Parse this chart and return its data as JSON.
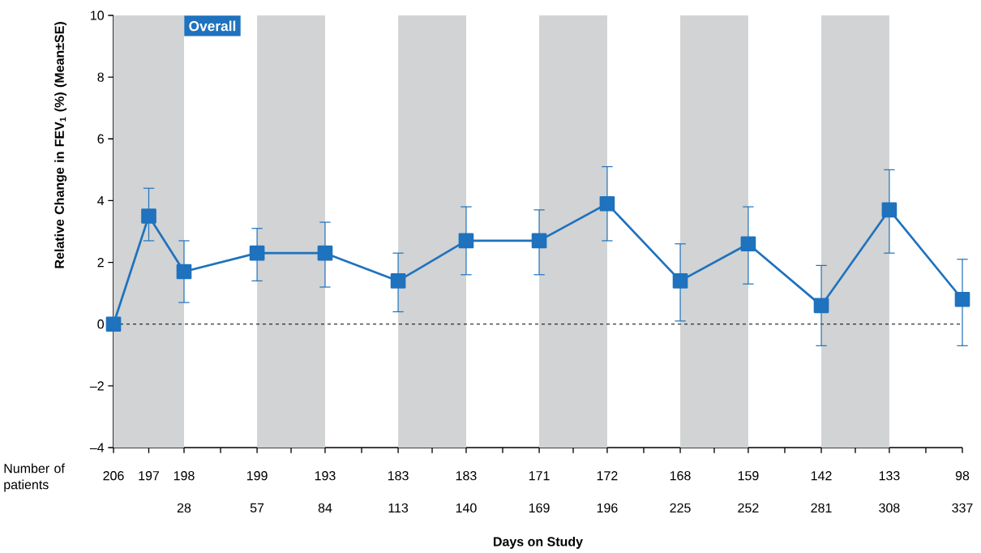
{
  "chart_data": {
    "type": "line",
    "title": "Overall",
    "xlabel": "Days on Study",
    "ylabel": "Relative Change in FEV$_{1}$ (%) (Mean±SE)",
    "annotations": [
      "Number of patients",
      "206",
      "197",
      "198",
      "199",
      "193",
      "183",
      "183",
      "171",
      "172",
      "168",
      "159",
      "142",
      "133",
      "98"
    ],
    "x": [
      0,
      14,
      28,
      57,
      84,
      113,
      140,
      169,
      196,
      225,
      252,
      281,
      308,
      337
    ],
    "values": [
      0.0,
      3.5,
      1.7,
      2.3,
      2.3,
      1.4,
      2.7,
      2.7,
      3.9,
      1.4,
      2.6,
      0.6,
      3.7,
      0.8
    ],
    "errors": [
      null,
      [
        2.7,
        4.4
      ],
      [
        0.7,
        2.7
      ],
      [
        1.4,
        3.1
      ],
      [
        1.2,
        3.3
      ],
      [
        0.4,
        2.3
      ],
      [
        1.6,
        3.8
      ],
      [
        1.6,
        3.7
      ],
      [
        2.7,
        5.1
      ],
      [
        0.1,
        2.6
      ],
      [
        1.3,
        3.8
      ],
      [
        -0.7,
        1.9
      ],
      [
        2.3,
        5.0
      ],
      [
        -0.7,
        2.1
      ]
    ],
    "color": "#1f72bd",
    "marker": "square",
    "xlim": [
      0,
      337
    ],
    "ylim": [
      -4,
      10
    ],
    "yticks": [
      {
        "value": -4,
        "label": "–4"
      },
      {
        "value": -2,
        "label": "–2"
      },
      0,
      2,
      4,
      6,
      8,
      10
    ],
    "xticks": [
      {
        "value": 0,
        "label": null
      },
      {
        "value": 14,
        "label": null
      },
      28,
      {
        "value": 42.5,
        "label": null
      },
      57,
      {
        "value": 70.5,
        "label": null
      },
      84,
      {
        "value": 98.5,
        "label": null
      },
      113,
      {
        "value": 126.5,
        "label": null
      },
      140,
      {
        "value": 154.5,
        "label": null
      },
      169,
      {
        "value": 182.5,
        "label": null
      },
      196,
      {
        "value": 210.5,
        "label": null
      },
      225,
      {
        "value": 238.5,
        "label": null
      },
      252,
      {
        "value": 266.5,
        "label": null
      },
      281,
      {
        "value": 294.5,
        "label": null
      },
      308,
      {
        "value": 322.5,
        "label": null
      },
      337
    ],
    "bands": [
      {
        "axis": "x",
        "from": 0,
        "to": 28,
        "color": "#d1d3d4"
      },
      {
        "axis": "x",
        "from": 57,
        "to": 84,
        "color": "#d1d3d4"
      },
      {
        "axis": "x",
        "from": 113,
        "to": 140,
        "color": "#d1d3d4"
      },
      {
        "axis": "x",
        "from": 169,
        "to": 196,
        "color": "#d1d3d4"
      },
      {
        "axis": "x",
        "from": 225,
        "to": 252,
        "color": "#d1d3d4"
      },
      {
        "axis": "x",
        "from": 281,
        "to": 308,
        "color": "#d1d3d4"
      }
    ],
    "ref_lines": [
      {
        "axis": "y",
        "value": 0,
        "color": "#000000",
        "line_style": "dashed"
      }
    ]
  }
}
